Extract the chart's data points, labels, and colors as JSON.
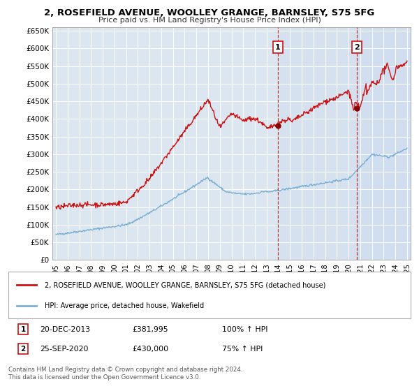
{
  "title": "2, ROSEFIELD AVENUE, WOOLLEY GRANGE, BARNSLEY, S75 5FG",
  "subtitle": "Price paid vs. HM Land Registry's House Price Index (HPI)",
  "ylim": [
    0,
    660000
  ],
  "xlim_start": 1994.7,
  "xlim_end": 2025.3,
  "background_color": "#ffffff",
  "plot_bg_color": "#dce6f0",
  "grid_color": "#ffffff",
  "hpi_color": "#7bafd4",
  "price_color": "#cc1111",
  "marker1_x": 2013.97,
  "marker1_y": 381995,
  "marker2_x": 2020.73,
  "marker2_y": 430000,
  "vline1_x": 2013.97,
  "vline2_x": 2020.73,
  "legend_label_price": "2, ROSEFIELD AVENUE, WOOLLEY GRANGE, BARNSLEY, S75 5FG (detached house)",
  "legend_label_hpi": "HPI: Average price, detached house, Wakefield",
  "annotation1_date": "20-DEC-2013",
  "annotation1_price": "£381,995",
  "annotation1_hpi": "100% ↑ HPI",
  "annotation2_date": "25-SEP-2020",
  "annotation2_price": "£430,000",
  "annotation2_hpi": "75% ↑ HPI",
  "footer": "Contains HM Land Registry data © Crown copyright and database right 2024.\nThis data is licensed under the Open Government Licence v3.0.",
  "yticks": [
    0,
    50000,
    100000,
    150000,
    200000,
    250000,
    300000,
    350000,
    400000,
    450000,
    500000,
    550000,
    600000,
    650000
  ],
  "ytick_labels": [
    "£0",
    "£50K",
    "£100K",
    "£150K",
    "£200K",
    "£250K",
    "£300K",
    "£350K",
    "£400K",
    "£450K",
    "£500K",
    "£550K",
    "£600K",
    "£650K"
  ],
  "xticks": [
    1995,
    1996,
    1997,
    1998,
    1999,
    2000,
    2001,
    2002,
    2003,
    2004,
    2005,
    2006,
    2007,
    2008,
    2009,
    2010,
    2011,
    2012,
    2013,
    2014,
    2015,
    2016,
    2017,
    2018,
    2019,
    2020,
    2021,
    2022,
    2023,
    2024,
    2025
  ],
  "vspan1_alpha": 0.18,
  "vspan2_alpha": 0.28,
  "vspan_color": "#c8d8f0"
}
